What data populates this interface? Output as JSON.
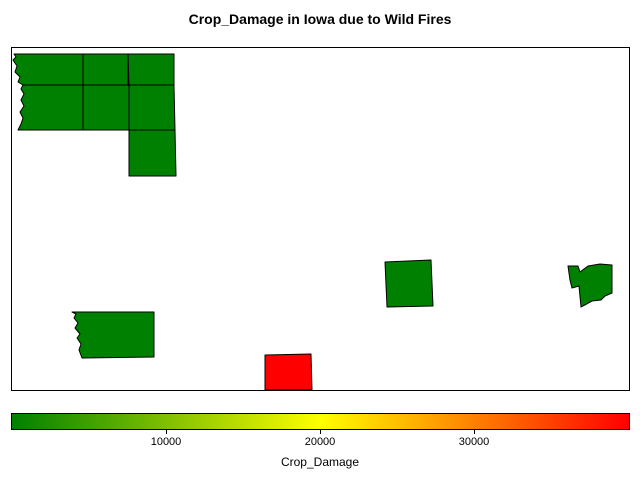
{
  "title": "Crop_Damage in Iowa due to Wild Fires",
  "legend": {
    "title": "Crop_Damage",
    "min": 0,
    "max": 40000,
    "ticks": [
      "10000",
      "20000",
      "30000"
    ],
    "colors": {
      "low": "#008000",
      "mid": "#ffff00",
      "high": "#ff0000"
    }
  },
  "colors": {
    "green_fill": "#008000",
    "red_fill": "#ff0000"
  },
  "counties": [
    {
      "id": "nw-1",
      "crop_damage": 0
    },
    {
      "id": "nw-2",
      "crop_damage": 0
    },
    {
      "id": "nw-3",
      "crop_damage": 0
    },
    {
      "id": "nw-4",
      "crop_damage": 0
    },
    {
      "id": "nw-5",
      "crop_damage": 0
    },
    {
      "id": "nw-6",
      "crop_damage": 0
    },
    {
      "id": "nw-7",
      "crop_damage": 0
    },
    {
      "id": "east-central",
      "crop_damage": 0
    },
    {
      "id": "east-river",
      "crop_damage": 0
    },
    {
      "id": "southwest-river",
      "crop_damage": 0
    },
    {
      "id": "south-central",
      "crop_damage": 40000
    }
  ]
}
